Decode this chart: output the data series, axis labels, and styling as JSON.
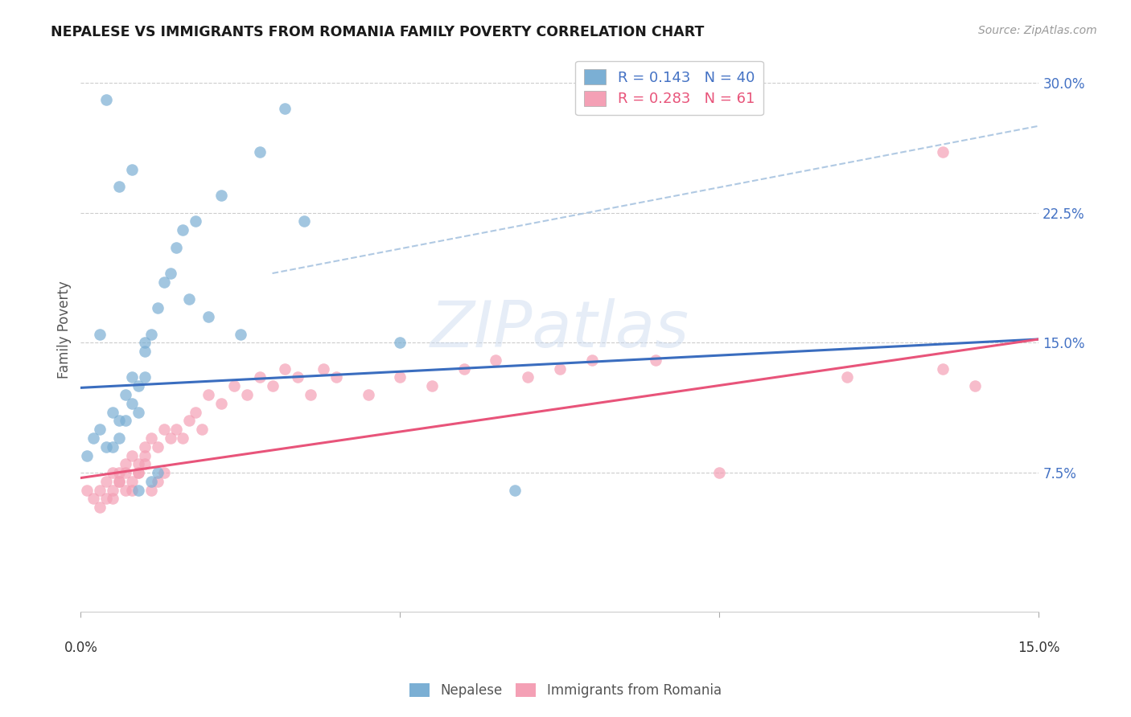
{
  "title": "NEPALESE VS IMMIGRANTS FROM ROMANIA FAMILY POVERTY CORRELATION CHART",
  "source": "Source: ZipAtlas.com",
  "ylabel": "Family Poverty",
  "ytick_values": [
    0.075,
    0.15,
    0.225,
    0.3
  ],
  "xlim": [
    0.0,
    0.15
  ],
  "ylim": [
    -0.005,
    0.32
  ],
  "legend_blue_r": "0.143",
  "legend_blue_n": "40",
  "legend_pink_r": "0.283",
  "legend_pink_n": "61",
  "blue_color": "#7bafd4",
  "pink_color": "#f4a0b5",
  "blue_line_color": "#3a6dbf",
  "pink_line_color": "#e8547a",
  "dashed_line_color": "#a8c4e0",
  "watermark": "ZIPatlas",
  "blue_line_x": [
    0.0,
    0.15
  ],
  "blue_line_y": [
    0.124,
    0.152
  ],
  "pink_line_x": [
    0.0,
    0.15
  ],
  "pink_line_y": [
    0.072,
    0.152
  ],
  "dashed_line_x": [
    0.03,
    0.15
  ],
  "dashed_line_y": [
    0.19,
    0.275
  ],
  "nepalese_x": [
    0.001,
    0.002,
    0.003,
    0.004,
    0.005,
    0.005,
    0.006,
    0.006,
    0.007,
    0.007,
    0.008,
    0.008,
    0.009,
    0.009,
    0.01,
    0.01,
    0.011,
    0.012,
    0.013,
    0.014,
    0.015,
    0.016,
    0.017,
    0.018,
    0.02,
    0.022,
    0.025,
    0.028,
    0.032,
    0.035,
    0.004,
    0.006,
    0.008,
    0.009,
    0.01,
    0.011,
    0.012,
    0.05,
    0.068,
    0.003
  ],
  "nepalese_y": [
    0.085,
    0.095,
    0.1,
    0.09,
    0.09,
    0.11,
    0.095,
    0.105,
    0.105,
    0.12,
    0.115,
    0.13,
    0.11,
    0.125,
    0.13,
    0.145,
    0.155,
    0.17,
    0.185,
    0.19,
    0.205,
    0.215,
    0.175,
    0.22,
    0.165,
    0.235,
    0.155,
    0.26,
    0.285,
    0.22,
    0.29,
    0.24,
    0.25,
    0.065,
    0.15,
    0.07,
    0.075,
    0.15,
    0.065,
    0.155
  ],
  "romania_x": [
    0.001,
    0.002,
    0.003,
    0.004,
    0.005,
    0.005,
    0.006,
    0.006,
    0.007,
    0.007,
    0.008,
    0.008,
    0.009,
    0.009,
    0.01,
    0.01,
    0.011,
    0.012,
    0.013,
    0.014,
    0.015,
    0.016,
    0.017,
    0.018,
    0.019,
    0.02,
    0.022,
    0.024,
    0.026,
    0.028,
    0.03,
    0.032,
    0.034,
    0.036,
    0.038,
    0.04,
    0.045,
    0.05,
    0.055,
    0.06,
    0.065,
    0.07,
    0.075,
    0.08,
    0.09,
    0.1,
    0.12,
    0.135,
    0.14,
    0.003,
    0.004,
    0.005,
    0.006,
    0.007,
    0.008,
    0.009,
    0.01,
    0.011,
    0.012,
    0.013,
    0.135
  ],
  "romania_y": [
    0.065,
    0.06,
    0.065,
    0.07,
    0.075,
    0.06,
    0.07,
    0.075,
    0.08,
    0.065,
    0.085,
    0.07,
    0.075,
    0.08,
    0.085,
    0.09,
    0.095,
    0.09,
    0.1,
    0.095,
    0.1,
    0.095,
    0.105,
    0.11,
    0.1,
    0.12,
    0.115,
    0.125,
    0.12,
    0.13,
    0.125,
    0.135,
    0.13,
    0.12,
    0.135,
    0.13,
    0.12,
    0.13,
    0.125,
    0.135,
    0.14,
    0.13,
    0.135,
    0.14,
    0.14,
    0.075,
    0.13,
    0.135,
    0.125,
    0.055,
    0.06,
    0.065,
    0.07,
    0.075,
    0.065,
    0.075,
    0.08,
    0.065,
    0.07,
    0.075,
    0.26
  ]
}
